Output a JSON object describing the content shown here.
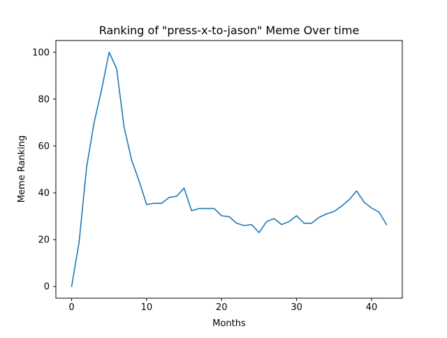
{
  "chart_data": {
    "type": "line",
    "title": "Ranking of \"press-x-to-jason\" Meme Over time",
    "xlabel": "Months",
    "ylabel": "Meme Ranking",
    "xlim": [
      -2.1,
      44.1
    ],
    "ylim": [
      -5,
      105
    ],
    "xticks": [
      0,
      10,
      20,
      30,
      40
    ],
    "yticks": [
      0,
      20,
      40,
      60,
      80,
      100
    ],
    "grid": false,
    "line_color": "#1f77b4",
    "series": [
      {
        "name": "press-x-to-jason",
        "x": [
          0,
          1,
          2,
          3,
          4,
          5,
          6,
          7,
          8,
          9,
          10,
          11,
          12,
          13,
          14,
          15,
          16,
          17,
          18,
          19,
          20,
          21,
          22,
          23,
          24,
          25,
          26,
          27,
          28,
          29,
          30,
          31,
          32,
          33,
          34,
          35,
          36,
          37,
          38,
          39,
          40,
          41,
          42
        ],
        "values": [
          0,
          19,
          51,
          70,
          84,
          100,
          93,
          68,
          54,
          45,
          35,
          35.5,
          35.5,
          38,
          38.5,
          42,
          32.3,
          33.3,
          33.3,
          33.3,
          30.2,
          29.8,
          27,
          26,
          26.4,
          23,
          27.7,
          29,
          26.4,
          27.7,
          30.2,
          27,
          27,
          29.5,
          31,
          32,
          34.3,
          37,
          40.8,
          36,
          33.5,
          31.7,
          26.4
        ]
      }
    ]
  }
}
